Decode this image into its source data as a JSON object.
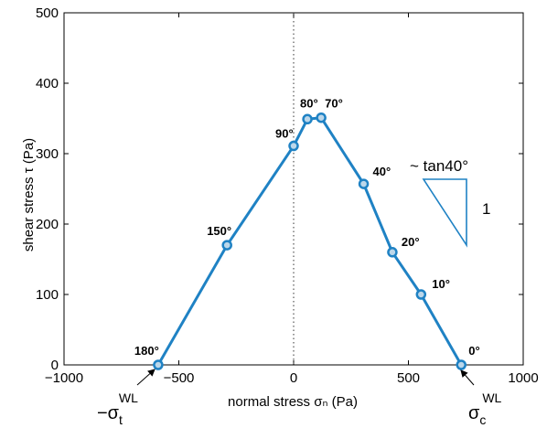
{
  "chart_data": {
    "type": "line",
    "xlabel": "normal stress σₙ (Pa)",
    "ylabel": "shear stress τ (Pa)",
    "xlim": [
      -1000,
      1000
    ],
    "ylim": [
      0,
      500
    ],
    "xticks": [
      -1000,
      -500,
      0,
      500,
      1000
    ],
    "yticks": [
      0,
      100,
      200,
      300,
      400,
      500
    ],
    "grid": false,
    "series": [
      {
        "color": "#1f82c4",
        "points": [
          {
            "x": -590,
            "y": 0,
            "label": "180°"
          },
          {
            "x": -290,
            "y": 170,
            "label": "150°"
          },
          {
            "x": 0,
            "y": 311,
            "label": "90°"
          },
          {
            "x": 60,
            "y": 349,
            "label": "80°"
          },
          {
            "x": 120,
            "y": 351,
            "label": "70°"
          },
          {
            "x": 305,
            "y": 257,
            "label": "40°"
          },
          {
            "x": 430,
            "y": 160,
            "label": "20°"
          },
          {
            "x": 555,
            "y": 100,
            "label": "10°"
          },
          {
            "x": 730,
            "y": 0,
            "label": "0°"
          }
        ]
      }
    ],
    "reference_line": {
      "x": 0,
      "style": "dotted"
    },
    "annotations": {
      "slope_text": "~ tan40°",
      "slope_run_label": "1",
      "tensile_sigma": "−σ",
      "tensile_sub": "t",
      "tensile_sup": "WL",
      "compressive_sigma": "σ",
      "compressive_sub": "c",
      "compressive_sup": "WL"
    }
  }
}
